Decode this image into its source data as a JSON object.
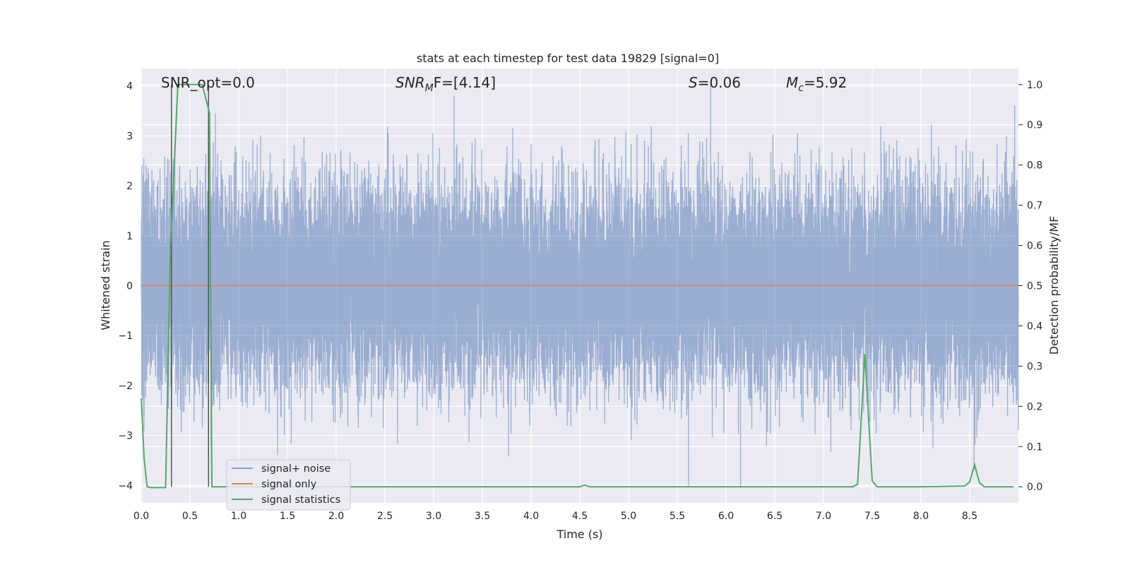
{
  "chart_data": {
    "type": "line",
    "title": "stats at each timestep for test data 19829 [signal=0]",
    "xlabel": "Time (s)",
    "ylabel": "Whitened strain",
    "y2label": "Detection probability/MF",
    "xlim": [
      0.0,
      9.0
    ],
    "ylim": [
      -4.35,
      4.35
    ],
    "y2lim": [
      -0.04,
      1.04
    ],
    "xticks": [
      0.0,
      0.5,
      1.0,
      1.5,
      2.0,
      2.5,
      3.0,
      3.5,
      4.0,
      4.5,
      5.0,
      5.5,
      6.0,
      6.5,
      7.0,
      7.5,
      8.0,
      8.5
    ],
    "xtick_labels": [
      "0.0",
      "0.5",
      "1.0",
      "1.5",
      "2.0",
      "2.5",
      "3.0",
      "3.5",
      "4.0",
      "4.5",
      "5.0",
      "5.5",
      "6.0",
      "6.5",
      "7.0",
      "7.5",
      "8.0",
      "8.5"
    ],
    "yticks": [
      4,
      3,
      2,
      1,
      0,
      -1,
      -2,
      -3,
      -4
    ],
    "ytick_labels": [
      "4",
      "3",
      "2",
      "1",
      "0",
      "−1",
      "−2",
      "−3",
      "−4"
    ],
    "y2ticks": [
      1.0,
      0.9,
      0.8,
      0.7,
      0.6,
      0.5,
      0.4,
      0.3,
      0.2,
      0.1,
      0.0
    ],
    "y2tick_labels": [
      "1.0",
      "0.9",
      "0.8",
      "0.7",
      "0.6",
      "0.5",
      "0.4",
      "0.3",
      "0.2",
      "0.1",
      "0.0"
    ],
    "grid": true,
    "legend_position": "lower-left",
    "annotations": {
      "snr_opt": "SNR_opt=0.0",
      "snr_mf_prefix": "SNR",
      "snr_mf_sub": "M",
      "snr_mf_suffix": "F=[4.14]",
      "s_label": "S",
      "s_value": "=0.06",
      "mc_label": "M",
      "mc_sub": "c",
      "mc_value": "=5.92"
    },
    "vertical_markers": [
      0.31,
      0.69
    ],
    "series": [
      {
        "name": "signal+ noise",
        "color": "#4c72b0",
        "opacity": 0.5,
        "kind": "noise",
        "sample_rate": 2048,
        "duration": 9.0,
        "sigma": 1.0,
        "seed": 19829
      },
      {
        "name": "signal only",
        "color": "#dd8452",
        "kind": "constant",
        "value": 0.0
      },
      {
        "name": "signal statistics",
        "color": "#55a868",
        "axis": "right",
        "x": [
          0.0,
          0.03,
          0.06,
          0.1,
          0.15,
          0.2,
          0.25,
          0.3,
          0.32,
          0.375,
          0.4,
          0.45,
          0.5,
          0.55,
          0.6,
          0.625,
          0.7,
          0.725,
          0.75,
          0.8,
          1.0,
          2.0,
          3.0,
          4.0,
          4.45,
          4.5,
          4.55,
          4.6,
          4.7,
          5.0,
          6.0,
          7.0,
          7.3,
          7.35,
          7.425,
          7.5,
          7.55,
          8.0,
          8.2,
          8.45,
          8.5,
          8.55,
          8.6,
          8.65,
          8.95
        ],
        "y": [
          0.22,
          0.07,
          0.0,
          -0.002,
          -0.002,
          -0.002,
          -0.002,
          0.6,
          0.7,
          1.0,
          1.0,
          1.0,
          1.0,
          1.0,
          1.0,
          1.0,
          0.93,
          0.0,
          0.0,
          0.0,
          0.0,
          0.0,
          0.0,
          0.0,
          0.0,
          0.0,
          0.004,
          0.0,
          0.0,
          0.0,
          0.0,
          0.0,
          0.0,
          0.006,
          0.33,
          0.015,
          0.0,
          0.0,
          0.001,
          0.002,
          0.012,
          0.055,
          0.01,
          0.0,
          0.0
        ]
      }
    ]
  }
}
